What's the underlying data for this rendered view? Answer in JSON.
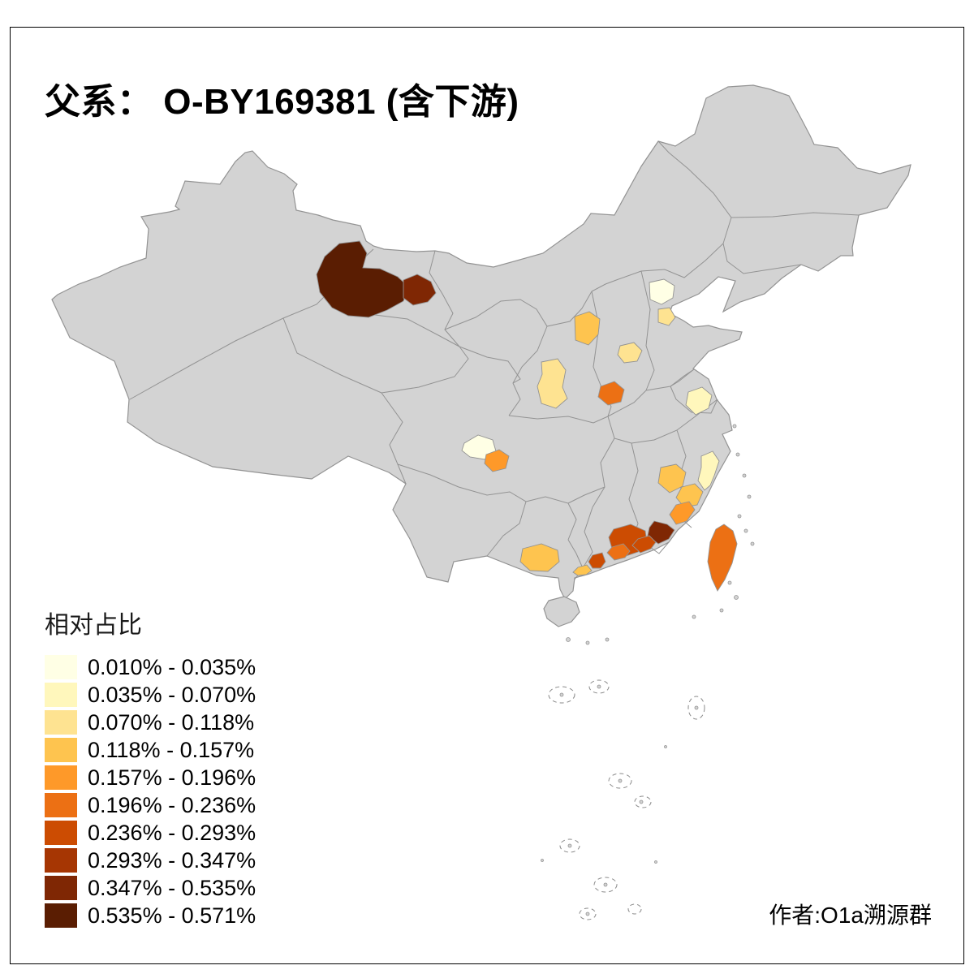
{
  "title": "父系： O-BY169381 (含下游)",
  "attribution": "作者:O1a溯源群",
  "legend": {
    "title": "相对占比",
    "classes": [
      {
        "label": "0.010% - 0.035%",
        "color": "#FFFFE5"
      },
      {
        "label": "0.035% - 0.070%",
        "color": "#FFF7BC"
      },
      {
        "label": "0.070% - 0.118%",
        "color": "#FEE391"
      },
      {
        "label": "0.118% - 0.157%",
        "color": "#FEC44F"
      },
      {
        "label": "0.157% - 0.196%",
        "color": "#FE9929"
      },
      {
        "label": "0.196% - 0.236%",
        "color": "#EC7014"
      },
      {
        "label": "0.236% - 0.293%",
        "color": "#CC4C02"
      },
      {
        "label": "0.293% - 0.347%",
        "color": "#A63603"
      },
      {
        "label": "0.347% - 0.535%",
        "color": "#7F2704"
      },
      {
        "label": "0.535% - 0.571%",
        "color": "#5A1D02"
      }
    ]
  },
  "map": {
    "base_fill": "#D3D3D3",
    "boundary_color": "#939393",
    "frame_color": "#000000",
    "regions": [
      {
        "id": "r1",
        "class_index": 10
      },
      {
        "id": "r2",
        "class_index": 9
      },
      {
        "id": "r3",
        "class_index": 1
      },
      {
        "id": "r4",
        "class_index": 3
      },
      {
        "id": "r5",
        "class_index": 4
      },
      {
        "id": "r6",
        "class_index": 3
      },
      {
        "id": "r7",
        "class_index": 3
      },
      {
        "id": "r8",
        "class_index": 6
      },
      {
        "id": "r9",
        "class_index": 2
      },
      {
        "id": "r10",
        "class_index": 1
      },
      {
        "id": "r11",
        "class_index": 5
      },
      {
        "id": "r12",
        "class_index": 4
      },
      {
        "id": "r13",
        "class_index": 2
      },
      {
        "id": "r14",
        "class_index": 4
      },
      {
        "id": "r15",
        "class_index": 5
      },
      {
        "id": "r16",
        "class_index": 9
      },
      {
        "id": "r17",
        "class_index": 7
      },
      {
        "id": "r18",
        "class_index": 7
      },
      {
        "id": "r19",
        "class_index": 6
      },
      {
        "id": "r20",
        "class_index": 7
      },
      {
        "id": "r21",
        "class_index": 4
      },
      {
        "id": "r22",
        "class_index": 4
      },
      {
        "id": "r23",
        "class_index": 6
      }
    ]
  }
}
